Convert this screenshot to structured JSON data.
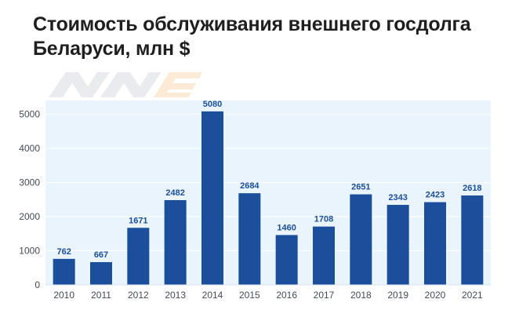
{
  "page": {
    "title_line1": "Стоимость обслуживания внешнего госдолга",
    "title_line2": "Беларуси, млн $"
  },
  "chart_data": {
    "type": "bar",
    "title": "Стоимость обслуживания внешнего госдолга Беларуси, млн $",
    "categories": [
      "2010",
      "2011",
      "2012",
      "2013",
      "2014",
      "2015",
      "2016",
      "2017",
      "2018",
      "2019",
      "2020",
      "2021"
    ],
    "values": [
      762,
      667,
      1671,
      2482,
      5080,
      2684,
      1460,
      1708,
      2651,
      2343,
      2423,
      2618
    ],
    "data_labels": [
      "762",
      "667",
      "1671",
      "2482",
      "5080",
      "2684",
      "1460",
      "1708",
      "2651",
      "2343",
      "2423",
      "2618"
    ],
    "xlabel": "",
    "ylabel": "",
    "ylim": [
      0,
      5400
    ],
    "yticks": [
      0,
      1000,
      2000,
      3000,
      4000,
      5000
    ],
    "ytick_labels": [
      "0",
      "1000",
      "2000",
      "3000",
      "4000",
      "5000"
    ],
    "grid": true,
    "legend": "none",
    "colors": {
      "bar": "#1b4e9b",
      "plot_background": "#e9f4fc",
      "gridline": "#ffffff",
      "data_label": "#1c4f9c",
      "tick_label": "#444a55",
      "title": "#1f1f1f",
      "logo_gray": "#e6e8ec",
      "logo_orange": "#fde7cf"
    }
  },
  "logo": {
    "icon": "watermark-logo-icon"
  }
}
